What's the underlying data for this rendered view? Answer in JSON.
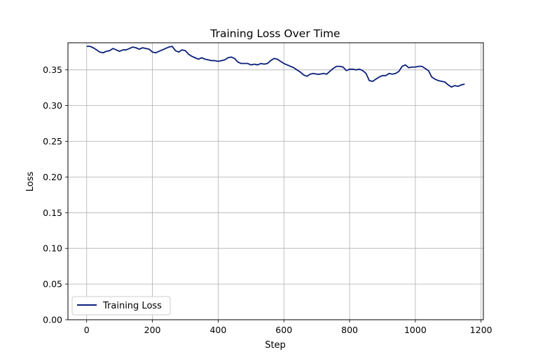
{
  "chart_data": {
    "type": "line",
    "title": "Training Loss Over Time",
    "xlabel": "Step",
    "ylabel": "Loss",
    "xlim": [
      -57,
      1207
    ],
    "ylim": [
      0,
      0.388
    ],
    "xticks": [
      0,
      200,
      400,
      600,
      800,
      1000,
      1200
    ],
    "xtick_labels": [
      "0",
      "200",
      "400",
      "600",
      "800",
      "1000",
      "1200"
    ],
    "yticks": [
      0,
      0.05,
      0.1,
      0.15,
      0.2,
      0.25,
      0.3,
      0.35
    ],
    "ytick_labels": [
      "0.00",
      "0.05",
      "0.10",
      "0.15",
      "0.20",
      "0.25",
      "0.30",
      "0.35"
    ],
    "grid": true,
    "legend_position": "lower-left",
    "series": [
      {
        "name": "Training Loss",
        "color": "#0a1f7a",
        "x": [
          0,
          10,
          20,
          30,
          40,
          50,
          60,
          70,
          80,
          90,
          100,
          110,
          120,
          130,
          140,
          150,
          160,
          170,
          180,
          190,
          200,
          210,
          220,
          230,
          240,
          250,
          260,
          270,
          280,
          290,
          300,
          310,
          320,
          330,
          340,
          350,
          360,
          370,
          380,
          390,
          400,
          410,
          420,
          430,
          440,
          450,
          460,
          470,
          480,
          490,
          500,
          510,
          520,
          530,
          540,
          550,
          560,
          570,
          580,
          590,
          600,
          610,
          620,
          630,
          640,
          650,
          660,
          670,
          680,
          690,
          700,
          710,
          720,
          730,
          740,
          750,
          760,
          770,
          780,
          790,
          800,
          810,
          820,
          830,
          840,
          850,
          860,
          870,
          880,
          890,
          900,
          910,
          920,
          930,
          940,
          950,
          960,
          970,
          980,
          990,
          1000,
          1010,
          1020,
          1030,
          1040,
          1050,
          1060,
          1070,
          1080,
          1090,
          1100,
          1110,
          1120,
          1130,
          1140,
          1150
        ],
        "y": [
          0.383,
          0.383,
          0.381,
          0.378,
          0.375,
          0.374,
          0.376,
          0.377,
          0.38,
          0.378,
          0.376,
          0.378,
          0.378,
          0.38,
          0.382,
          0.381,
          0.379,
          0.381,
          0.38,
          0.379,
          0.375,
          0.374,
          0.376,
          0.378,
          0.38,
          0.382,
          0.383,
          0.377,
          0.375,
          0.378,
          0.377,
          0.372,
          0.369,
          0.367,
          0.365,
          0.367,
          0.365,
          0.364,
          0.363,
          0.363,
          0.362,
          0.363,
          0.364,
          0.367,
          0.368,
          0.366,
          0.361,
          0.359,
          0.359,
          0.359,
          0.357,
          0.358,
          0.357,
          0.359,
          0.358,
          0.359,
          0.363,
          0.366,
          0.365,
          0.362,
          0.359,
          0.357,
          0.355,
          0.353,
          0.35,
          0.347,
          0.343,
          0.341,
          0.344,
          0.345,
          0.344,
          0.344,
          0.345,
          0.344,
          0.348,
          0.352,
          0.355,
          0.355,
          0.354,
          0.349,
          0.351,
          0.351,
          0.35,
          0.351,
          0.349,
          0.345,
          0.335,
          0.334,
          0.337,
          0.34,
          0.342,
          0.342,
          0.345,
          0.344,
          0.345,
          0.348,
          0.355,
          0.357,
          0.353,
          0.354,
          0.354,
          0.355,
          0.355,
          0.352,
          0.349,
          0.34,
          0.337,
          0.335,
          0.334,
          0.333,
          0.329,
          0.326,
          0.328,
          0.327,
          0.329,
          0.33
        ]
      }
    ]
  }
}
